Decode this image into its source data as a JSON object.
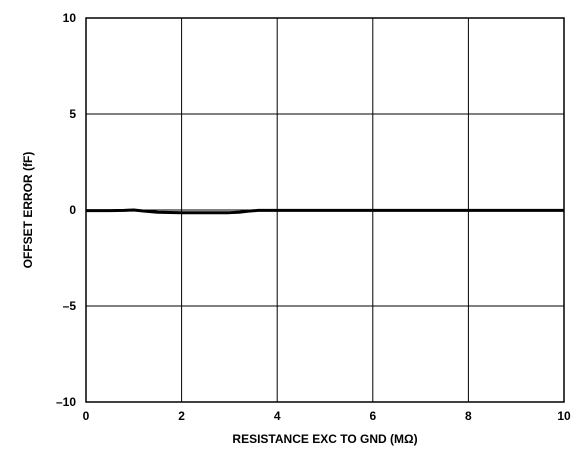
{
  "chart_data": {
    "type": "line",
    "xlabel": "RESISTANCE EXC TO GND (MΩ)",
    "ylabel": "OFFSET ERROR (fF)",
    "xlim": [
      0,
      10
    ],
    "ylim": [
      -10,
      10
    ],
    "xticks": [
      0,
      2,
      4,
      6,
      8,
      10
    ],
    "yticks": [
      10,
      5,
      0,
      -5,
      -10
    ],
    "xtick_labels": [
      "0",
      "2",
      "4",
      "6",
      "8",
      "10"
    ],
    "ytick_labels": [
      "10",
      "5",
      "0",
      "–5",
      "–10"
    ],
    "grid": true,
    "series": [
      {
        "color": "#000000",
        "x": [
          0,
          0.5,
          0.8,
          1.0,
          1.2,
          1.5,
          2.0,
          2.5,
          3.0,
          3.2,
          3.4,
          3.6,
          4.0,
          5.0,
          6.0,
          7.0,
          8.0,
          9.0,
          10.0
        ],
        "y": [
          -0.03,
          -0.03,
          -0.02,
          0.0,
          -0.05,
          -0.12,
          -0.14,
          -0.14,
          -0.14,
          -0.12,
          -0.06,
          -0.02,
          -0.02,
          -0.02,
          -0.02,
          -0.02,
          -0.02,
          -0.02,
          -0.02
        ]
      }
    ]
  }
}
